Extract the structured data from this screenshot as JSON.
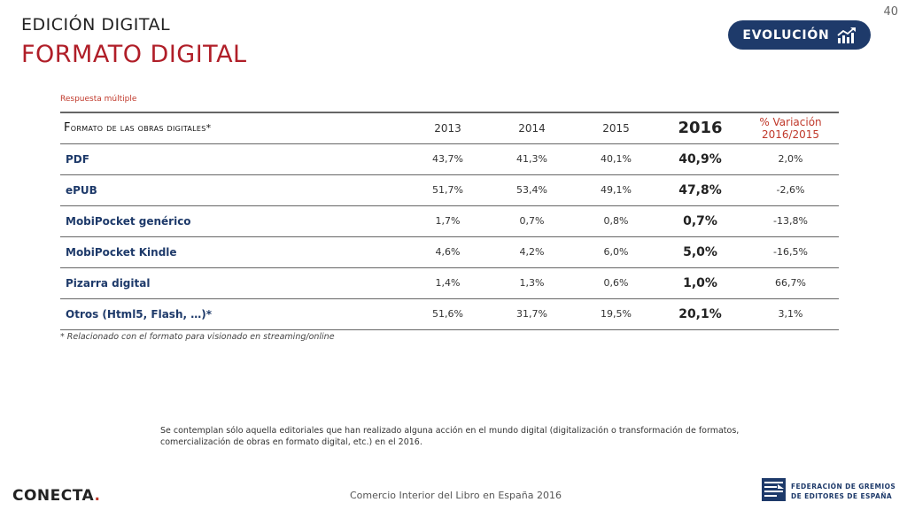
{
  "page_number": "40",
  "header": {
    "supertitle": "EDICIÓN DIGITAL",
    "title": "FORMATO DIGITAL",
    "badge_label": "EVOLUCIÓN",
    "badge_icon": "rising-chart-icon"
  },
  "note_top": "Respuesta múltiple",
  "table": {
    "headers": {
      "label": "Formato de las obras digitales*",
      "y2013": "2013",
      "y2014": "2014",
      "y2015": "2015",
      "y2016": "2016",
      "variation": "% Variación 2016/2015"
    },
    "rows": [
      {
        "label": "PDF",
        "y2013": "43,7%",
        "y2014": "41,3%",
        "y2015": "40,1%",
        "y2016": "40,9%",
        "variation": "2,0%"
      },
      {
        "label": "ePUB",
        "y2013": "51,7%",
        "y2014": "53,4%",
        "y2015": "49,1%",
        "y2016": "47,8%",
        "variation": "-2,6%"
      },
      {
        "label": "MobiPocket genérico",
        "y2013": "1,7%",
        "y2014": "0,7%",
        "y2015": "0,8%",
        "y2016": "0,7%",
        "variation": "-13,8%"
      },
      {
        "label": "MobiPocket Kindle",
        "y2013": "4,6%",
        "y2014": "4,2%",
        "y2015": "6,0%",
        "y2016": "5,0%",
        "variation": "-16,5%"
      },
      {
        "label": "Pizarra digital",
        "y2013": "1,4%",
        "y2014": "1,3%",
        "y2015": "0,6%",
        "y2016": "1,0%",
        "variation": "66,7%"
      },
      {
        "label": "Otros (Html5, Flash, …)*",
        "y2013": "51,6%",
        "y2014": "31,7%",
        "y2015": "19,5%",
        "y2016": "20,1%",
        "variation": "3,1%"
      }
    ]
  },
  "footnote": "* Relacionado con el formato para visionado en streaming/online",
  "disclaimer": "Se contemplan sólo aquella editoriales que han realizado alguna acción en el mundo digital (digitalización o transformación de formatos, comercialización de obras en formato digital, etc.) en el 2016.",
  "footer": {
    "logo_left": "CONECTA",
    "logo_left_dot": ".",
    "center": "Comercio Interior del Libro en España 2016",
    "org_line1": "FEDERACIÓN DE GREMIOS",
    "org_line2": "DE EDITORES DE ESPAÑA"
  },
  "colors": {
    "accent_red": "#b01e28",
    "navy": "#1e3a6a"
  }
}
